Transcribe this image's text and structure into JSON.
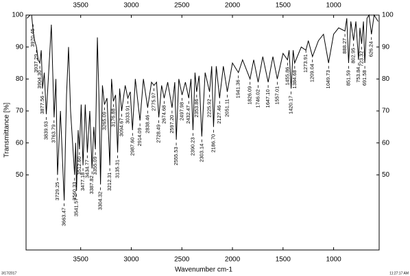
{
  "chart_data": {
    "type": "line",
    "x_label": "Wavenumber cm-1",
    "y_label": "Transmittance [%]",
    "footer_left": "3/17/2017",
    "footer_right": "11:27:17 AM",
    "xlim": [
      4040,
      550
    ],
    "ylim": [
      26.5,
      100
    ],
    "xticks": [
      3500,
      3000,
      2500,
      2000,
      1500,
      1000
    ],
    "yticks": [
      50,
      60,
      70,
      80,
      90,
      100
    ],
    "color": "#000000",
    "series": [
      {
        "x": [
          4030,
          4000,
          3985,
          3970,
          3955,
          3937,
          3920,
          3904,
          3890,
          3877,
          3860,
          3840,
          3820,
          3790,
          3763,
          3745,
          3729,
          3700,
          3663,
          3640,
          3620,
          3600,
          3560,
          3550,
          3541,
          3525,
          3512,
          3495,
          3477,
          3455,
          3434,
          3410,
          3388,
          3370,
          3355,
          3335,
          3320,
          3304,
          3285,
          3265,
          3240,
          3212,
          3195,
          3177,
          3155,
          3135,
          3115,
          3095,
          3060,
          3034,
          3010,
          2988,
          2960,
          2914,
          2880,
          2838,
          2800,
          2776,
          2750,
          2728,
          2700,
          2675,
          2640,
          2597,
          2570,
          2555,
          2530,
          2498,
          2465,
          2432,
          2410,
          2390,
          2370,
          2354,
          2330,
          2303,
          2270,
          2226,
          2205,
          2187,
          2160,
          2127,
          2090,
          2051,
          2000,
          1941,
          1900,
          1826,
          1790,
          1746,
          1700,
          1647,
          1600,
          1557,
          1500,
          1456,
          1440,
          1420,
          1400,
          1385,
          1320,
          1274,
          1250,
          1209,
          1150,
          1100,
          1050,
          1000,
          950,
          888,
          870,
          852,
          830,
          803,
          780,
          754,
          740,
          723,
          705,
          692,
          670,
          650,
          626,
          600,
          560
        ],
        "values": [
          99,
          100,
          100,
          95,
          92,
          90,
          86,
          85,
          89,
          77,
          82,
          69,
          80,
          97,
          68,
          80,
          50,
          70,
          42,
          75,
          90,
          70,
          50,
          60,
          45,
          64,
          58,
          72,
          53,
          72,
          57,
          70,
          52,
          65,
          58,
          93,
          75,
          47,
          78,
          72,
          74,
          53,
          80,
          73,
          75,
          57,
          77,
          70,
          78,
          74,
          76,
          64,
          80,
          67,
          80,
          71,
          79,
          78,
          79,
          68,
          78,
          74,
          79,
          71,
          79,
          61,
          80,
          75,
          79,
          74,
          80,
          64,
          82,
          76,
          81,
          62,
          82,
          76,
          84,
          65,
          84,
          74,
          84,
          76,
          85,
          82,
          86,
          80,
          86,
          79,
          87,
          79,
          87,
          80,
          88,
          86,
          89,
          77,
          89,
          85,
          90,
          89,
          92,
          87,
          92,
          94,
          85,
          94,
          96,
          95,
          99,
          85,
          98,
          92,
          98,
          86,
          96,
          91,
          98,
          85,
          99,
          100,
          94,
          100,
          98
        ]
      }
    ],
    "peaks": [
      {
        "label": "3970.45",
        "x": 3970.45,
        "y": 96
      },
      {
        "label": "3937.29",
        "x": 3937.29,
        "y": 88
      },
      {
        "label": "3904.30",
        "x": 3904.3,
        "y": 83
      },
      {
        "label": "3877.56",
        "x": 3877.56,
        "y": 75
      },
      {
        "label": "3839.93",
        "x": 3839.93,
        "y": 67
      },
      {
        "label": "3763.79",
        "x": 3763.79,
        "y": 66
      },
      {
        "label": "3729.25",
        "x": 3729.25,
        "y": 48
      },
      {
        "label": "3663.47",
        "x": 3663.47,
        "y": 40
      },
      {
        "label": "3560.33",
        "x": 3560.33,
        "y": 48
      },
      {
        "label": "3541.57",
        "x": 3541.57,
        "y": 43
      },
      {
        "label": "3512.60",
        "x": 3512.6,
        "y": 56
      },
      {
        "label": "3477.18",
        "x": 3477.18,
        "y": 51
      },
      {
        "label": "3434.77",
        "x": 3434.77,
        "y": 55
      },
      {
        "label": "3387.82",
        "x": 3387.82,
        "y": 50
      },
      {
        "label": "3355.09",
        "x": 3355.09,
        "y": 56
      },
      {
        "label": "3304.32",
        "x": 3304.32,
        "y": 45
      },
      {
        "label": "3265.09",
        "x": 3265.09,
        "y": 70
      },
      {
        "label": "3212.31",
        "x": 3212.31,
        "y": 51
      },
      {
        "label": "3176.88",
        "x": 3176.88,
        "y": 71
      },
      {
        "label": "3135.31",
        "x": 3135.31,
        "y": 55
      },
      {
        "label": "3094.67",
        "x": 3094.67,
        "y": 68
      },
      {
        "label": "3033.91",
        "x": 3033.91,
        "y": 72
      },
      {
        "label": "2987.60",
        "x": 2987.6,
        "y": 62
      },
      {
        "label": "2914.09",
        "x": 2914.09,
        "y": 65
      },
      {
        "label": "2838.46",
        "x": 2838.46,
        "y": 69
      },
      {
        "label": "2775.97",
        "x": 2775.97,
        "y": 76
      },
      {
        "label": "2728.49",
        "x": 2728.49,
        "y": 66
      },
      {
        "label": "2674.68",
        "x": 2674.68,
        "y": 72
      },
      {
        "label": "2597.20",
        "x": 2597.2,
        "y": 69
      },
      {
        "label": "2555.53",
        "x": 2555.53,
        "y": 59
      },
      {
        "label": "2497.98",
        "x": 2497.98,
        "y": 73
      },
      {
        "label": "2432.47",
        "x": 2432.47,
        "y": 72
      },
      {
        "label": "2390.23",
        "x": 2390.23,
        "y": 62
      },
      {
        "label": "2353.86",
        "x": 2353.86,
        "y": 74
      },
      {
        "label": "2303.14",
        "x": 2303.14,
        "y": 60
      },
      {
        "label": "2225.92",
        "x": 2225.92,
        "y": 74
      },
      {
        "label": "2186.70",
        "x": 2186.7,
        "y": 63
      },
      {
        "label": "2127.46",
        "x": 2127.46,
        "y": 72
      },
      {
        "label": "2051.11",
        "x": 2051.11,
        "y": 74
      },
      {
        "label": "1941.36",
        "x": 1941.36,
        "y": 80
      },
      {
        "label": "1826.09",
        "x": 1826.09,
        "y": 78
      },
      {
        "label": "1746.02",
        "x": 1746.02,
        "y": 77
      },
      {
        "label": "1647.10",
        "x": 1647.1,
        "y": 77
      },
      {
        "label": "1557.01",
        "x": 1557.01,
        "y": 78
      },
      {
        "label": "1455.86",
        "x": 1455.86,
        "y": 84
      },
      {
        "label": "1420.17",
        "x": 1420.17,
        "y": 75
      },
      {
        "label": "1384.68",
        "x": 1384.68,
        "y": 83
      },
      {
        "label": "1273.91",
        "x": 1273.91,
        "y": 88
      },
      {
        "label": "1209.04",
        "x": 1209.04,
        "y": 85
      },
      {
        "label": "1049.73",
        "x": 1049.73,
        "y": 83
      },
      {
        "label": "888.27",
        "x": 888.27,
        "y": 93
      },
      {
        "label": "851.59",
        "x": 851.59,
        "y": 83
      },
      {
        "label": "802.95",
        "x": 802.95,
        "y": 90
      },
      {
        "label": "753.84",
        "x": 753.84,
        "y": 84
      },
      {
        "label": "723.32",
        "x": 723.32,
        "y": 89
      },
      {
        "label": "691.58",
        "x": 691.58,
        "y": 83
      },
      {
        "label": "626.24",
        "x": 626.24,
        "y": 92
      }
    ]
  }
}
